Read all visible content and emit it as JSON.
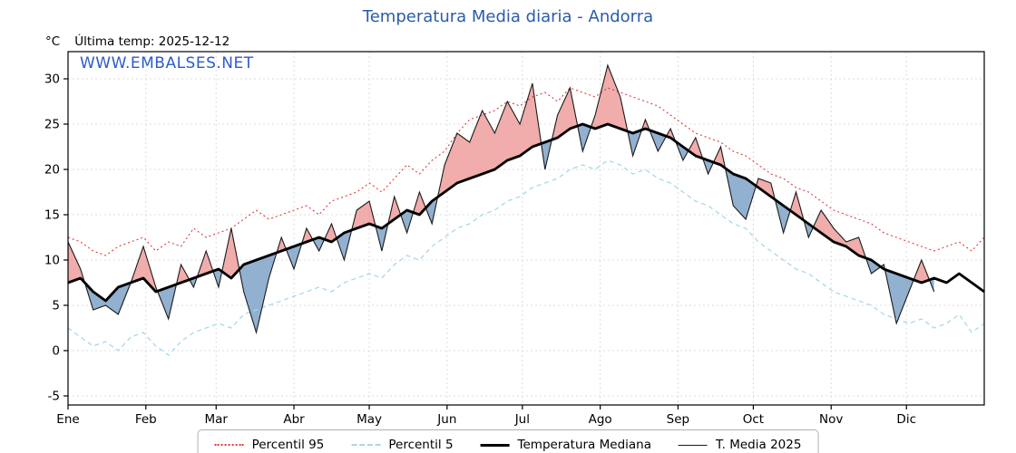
{
  "title": "Temperatura Media diaria - Andorra",
  "annotation": {
    "units": "°C",
    "last_temp": "Última temp: 2025-12-12"
  },
  "watermark": "WWW.EMBALSES.NET",
  "colors": {
    "title": "#2a5ca8",
    "watermark": "#2d5bc8",
    "p95": "#e03a3a",
    "p5": "#a8d8e8",
    "median": "#000000",
    "t2025": "#1a1a1a",
    "fill_above": "#ef9d9d",
    "fill_below": "#7fa3c8",
    "grid": "#dcdcdc",
    "axis": "#000000"
  },
  "legend": {
    "items": [
      {
        "key": "p95",
        "label": "Percentil 95"
      },
      {
        "key": "p5",
        "label": "Percentil 5"
      },
      {
        "key": "median",
        "label": "Temperatura Mediana"
      },
      {
        "key": "t2025",
        "label": "T. Media 2025"
      }
    ]
  },
  "chart_data": {
    "type": "line",
    "title": "Temperatura Media diaria - Andorra",
    "xlabel": "",
    "ylabel": "°C",
    "ylim": [
      -6,
      33
    ],
    "yticks": [
      -5,
      0,
      5,
      10,
      15,
      20,
      25,
      30
    ],
    "month_labels": [
      "Ene",
      "Feb",
      "Mar",
      "Abr",
      "May",
      "Jun",
      "Jul",
      "Ago",
      "Sep",
      "Oct",
      "Nov",
      "Dic"
    ],
    "month_start_days": [
      0,
      31,
      59,
      90,
      120,
      151,
      181,
      212,
      243,
      273,
      304,
      334
    ],
    "x_range": [
      0,
      365
    ],
    "days": [
      0,
      5,
      10,
      15,
      20,
      25,
      30,
      35,
      40,
      45,
      50,
      55,
      60,
      65,
      70,
      75,
      80,
      85,
      90,
      95,
      100,
      105,
      110,
      115,
      120,
      125,
      130,
      135,
      140,
      145,
      150,
      155,
      160,
      165,
      170,
      175,
      180,
      185,
      190,
      195,
      200,
      205,
      210,
      215,
      220,
      225,
      230,
      235,
      240,
      245,
      250,
      255,
      260,
      265,
      270,
      275,
      280,
      285,
      290,
      295,
      300,
      305,
      310,
      315,
      320,
      325,
      330,
      335,
      340,
      345,
      350,
      355,
      360,
      365
    ],
    "series": [
      {
        "name": "Percentil 95",
        "key": "p95",
        "values": [
          12.5,
          12.0,
          11.0,
          10.5,
          11.5,
          12.0,
          12.5,
          11.0,
          12.0,
          11.5,
          13.5,
          12.5,
          13.0,
          13.5,
          14.5,
          15.5,
          14.5,
          15.0,
          15.5,
          16.0,
          15.0,
          16.5,
          17.0,
          17.5,
          18.5,
          17.5,
          19.0,
          20.5,
          19.5,
          21.0,
          22.0,
          24.0,
          25.5,
          26.0,
          26.5,
          27.5,
          27.0,
          28.0,
          28.5,
          27.5,
          29.0,
          28.5,
          28.0,
          29.0,
          28.5,
          28.0,
          27.5,
          27.0,
          26.0,
          25.0,
          24.0,
          23.5,
          23.0,
          22.0,
          21.5,
          20.5,
          19.5,
          19.0,
          18.0,
          17.5,
          16.5,
          15.5,
          15.0,
          14.5,
          14.0,
          13.0,
          12.5,
          12.0,
          11.5,
          11.0,
          11.5,
          12.0,
          11.0,
          12.5
        ]
      },
      {
        "name": "Percentil 5",
        "key": "p5",
        "values": [
          2.5,
          1.5,
          0.5,
          1.0,
          0.0,
          1.5,
          2.0,
          0.5,
          -0.5,
          1.0,
          2.0,
          2.5,
          3.0,
          2.5,
          4.0,
          4.5,
          5.0,
          5.5,
          6.0,
          6.5,
          7.0,
          6.5,
          7.5,
          8.0,
          8.5,
          8.0,
          9.5,
          10.5,
          10.0,
          11.5,
          12.5,
          13.5,
          14.0,
          15.0,
          15.5,
          16.5,
          17.0,
          18.0,
          18.5,
          19.0,
          20.0,
          20.5,
          20.0,
          21.0,
          20.5,
          19.5,
          20.0,
          19.0,
          18.5,
          17.5,
          16.5,
          16.0,
          15.0,
          14.0,
          13.5,
          12.0,
          11.0,
          10.0,
          9.0,
          8.5,
          7.5,
          6.5,
          6.0,
          5.5,
          5.0,
          4.0,
          3.5,
          3.0,
          3.5,
          2.5,
          3.0,
          4.0,
          2.0,
          3.0
        ]
      },
      {
        "name": "Temperatura Mediana",
        "key": "median",
        "values": [
          7.5,
          8.0,
          6.5,
          5.5,
          7.0,
          7.5,
          8.0,
          6.5,
          7.0,
          7.5,
          8.0,
          8.5,
          9.0,
          8.0,
          9.5,
          10.0,
          10.5,
          11.0,
          11.5,
          12.0,
          12.5,
          12.0,
          13.0,
          13.5,
          14.0,
          13.5,
          14.5,
          15.5,
          15.0,
          16.5,
          17.5,
          18.5,
          19.0,
          19.5,
          20.0,
          21.0,
          21.5,
          22.5,
          23.0,
          23.5,
          24.5,
          25.0,
          24.5,
          25.0,
          24.5,
          24.0,
          24.5,
          24.0,
          23.5,
          22.5,
          21.5,
          21.0,
          20.5,
          19.5,
          19.0,
          18.0,
          17.0,
          16.0,
          15.0,
          14.0,
          13.0,
          12.0,
          11.5,
          10.5,
          10.0,
          9.0,
          8.5,
          8.0,
          7.5,
          8.0,
          7.5,
          8.5,
          7.5,
          6.5
        ]
      },
      {
        "name": "T. Media 2025",
        "key": "t2025",
        "values": [
          12.0,
          9.0,
          4.5,
          5.0,
          4.0,
          7.5,
          11.5,
          7.0,
          3.5,
          9.5,
          7.0,
          11.0,
          7.0,
          13.5,
          6.5,
          2.0,
          8.0,
          12.5,
          9.0,
          13.5,
          11.0,
          14.0,
          10.0,
          15.5,
          16.5,
          11.0,
          17.0,
          13.0,
          17.5,
          14.0,
          20.5,
          24.0,
          23.0,
          26.5,
          24.0,
          27.5,
          25.0,
          29.5,
          20.0,
          26.0,
          29.0,
          22.0,
          26.0,
          31.5,
          28.0,
          21.5,
          25.5,
          22.0,
          24.5,
          21.0,
          23.5,
          19.5,
          22.5,
          16.0,
          14.5,
          19.0,
          18.5,
          13.0,
          17.5,
          12.5,
          15.5,
          13.5,
          12.0,
          12.5,
          8.5,
          9.5,
          3.0,
          6.5,
          10.0,
          6.5,
          null,
          null,
          null,
          null
        ]
      }
    ]
  }
}
